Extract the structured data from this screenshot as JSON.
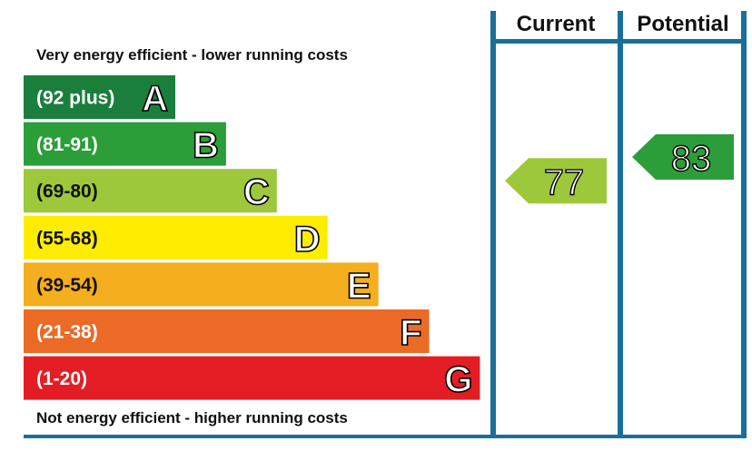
{
  "chart_data": {
    "type": "bar",
    "title": "",
    "top_note": "Very energy efficient - lower running costs",
    "bottom_note": "Not energy efficient - higher running costs",
    "columns": [
      "Current",
      "Potential"
    ],
    "bands": [
      {
        "letter": "A",
        "range": "(92 plus)",
        "min": 92,
        "max": null,
        "color": "#1a7f3c"
      },
      {
        "letter": "B",
        "range": "(81-91)",
        "min": 81,
        "max": 91,
        "color": "#2b9e3a"
      },
      {
        "letter": "C",
        "range": "(69-80)",
        "min": 69,
        "max": 80,
        "color": "#9dc83c"
      },
      {
        "letter": "D",
        "range": "(55-68)",
        "min": 55,
        "max": 68,
        "color": "#ffed00"
      },
      {
        "letter": "E",
        "range": "(39-54)",
        "min": 39,
        "max": 54,
        "color": "#f5ae1d"
      },
      {
        "letter": "F",
        "range": "(21-38)",
        "min": 21,
        "max": 38,
        "color": "#eb6a26"
      },
      {
        "letter": "G",
        "range": "(1-20)",
        "min": 1,
        "max": 20,
        "color": "#e31d23"
      }
    ],
    "ratings": [
      {
        "column": "Current",
        "value": 77,
        "band": "C",
        "color": "#9dc83c"
      },
      {
        "column": "Potential",
        "value": 83,
        "band": "B",
        "color": "#2b9e3a"
      }
    ],
    "frame_color": "#1a6f9a"
  }
}
